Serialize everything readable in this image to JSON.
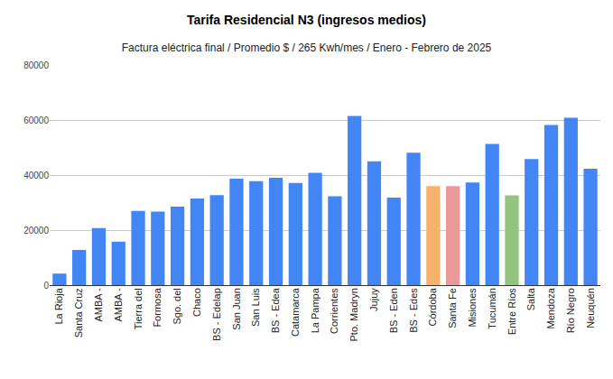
{
  "chart_data": {
    "type": "bar",
    "title": "Tarifa Residencial N3 (ingresos medios)",
    "subtitle": "Factura eléctrica final / Promedio $ / 265 Kwh/mes / Enero - Febrero de 2025",
    "categories": [
      "La Rioja",
      "Santa Cruz",
      "AMBA -",
      "AMBA -",
      "Tierra del",
      "Formosa",
      "Sgo. del",
      "Chaco",
      "BS - Edelap",
      "San Juan",
      "San Luis",
      "BS - Edea",
      "Catamarca",
      "La Pampa",
      "Corrientes",
      "Pto. Madryn",
      "Jujuy",
      "BS - Eden",
      "BS - Edes",
      "Córdoba",
      "Santa Fe",
      "Misiones",
      "Tucumán",
      "Entre Ríos",
      "Salta",
      "Mendoza",
      "Río Negro",
      "Neuquén"
    ],
    "values": [
      4200,
      12800,
      20700,
      15800,
      27000,
      26700,
      28500,
      31500,
      32700,
      38700,
      37800,
      39000,
      37100,
      40800,
      32300,
      61500,
      45000,
      31800,
      48100,
      36000,
      36000,
      37300,
      51300,
      32600,
      45800,
      58200,
      60800,
      42300
    ],
    "colors": [
      "#4285f4",
      "#4285f4",
      "#4285f4",
      "#4285f4",
      "#4285f4",
      "#4285f4",
      "#4285f4",
      "#4285f4",
      "#4285f4",
      "#4285f4",
      "#4285f4",
      "#4285f4",
      "#4285f4",
      "#4285f4",
      "#4285f4",
      "#4285f4",
      "#4285f4",
      "#4285f4",
      "#4285f4",
      "#f6b26b",
      "#ea9999",
      "#4285f4",
      "#4285f4",
      "#93c47d",
      "#4285f4",
      "#4285f4",
      "#4285f4",
      "#4285f4"
    ],
    "ylim": [
      0,
      80000
    ],
    "yticks": [
      0,
      20000,
      40000,
      60000,
      80000
    ],
    "grid": true
  }
}
